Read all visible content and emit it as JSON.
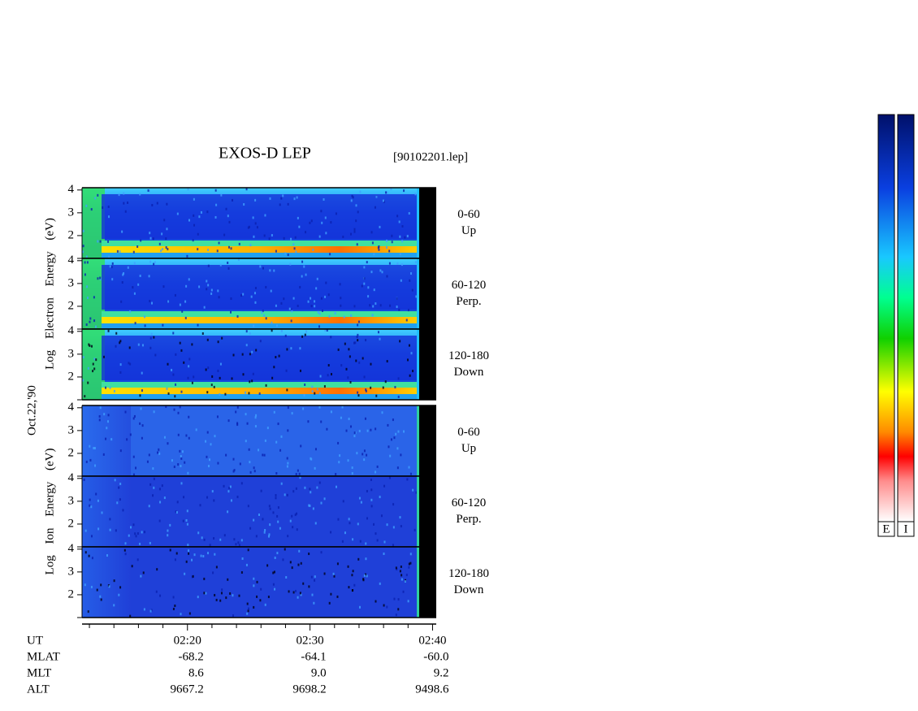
{
  "chart_data": {
    "type": "spectrogram",
    "title": "EXOS-D LEP",
    "file_label": "[90102201.lep]",
    "date_label": "Oct.22,'90",
    "groups": [
      {
        "name": "electron",
        "ylabel": "Log Electron Energy (eV)",
        "panels": [
          {
            "label": [
              "0-60",
              "Up"
            ]
          },
          {
            "label": [
              "60-120",
              "Perp."
            ]
          },
          {
            "label": [
              "120-180",
              "Down"
            ]
          }
        ]
      },
      {
        "name": "ion",
        "ylabel": "Log Ion Energy (eV)",
        "panels": [
          {
            "label": [
              "0-60",
              "Up"
            ]
          },
          {
            "label": [
              "60-120",
              "Perp."
            ]
          },
          {
            "label": [
              "120-180",
              "Down"
            ]
          }
        ]
      }
    ],
    "ylim": [
      1,
      4.1
    ],
    "yticks": [
      2,
      3,
      4
    ],
    "xlim": [
      11.4,
      40.3
    ],
    "xticks": [
      {
        "value": 20,
        "label": "02:20"
      },
      {
        "value": 30,
        "label": "02:30"
      },
      {
        "value": 40,
        "label": "02:40"
      }
    ],
    "minor_xticks": [
      12,
      14,
      16,
      18,
      22,
      24,
      26,
      28,
      32,
      34,
      36,
      38
    ],
    "ephemeris": {
      "row_labels": [
        "UT",
        "MLAT",
        "MLT",
        "ALT"
      ],
      "rows": [
        [
          "-68.2",
          "-64.1",
          "-60.0"
        ],
        [
          "8.6",
          "9.0",
          "9.2"
        ],
        [
          "9667.2",
          "9698.2",
          "9498.6"
        ]
      ]
    },
    "colorbar_labels": [
      "E",
      "I"
    ]
  }
}
